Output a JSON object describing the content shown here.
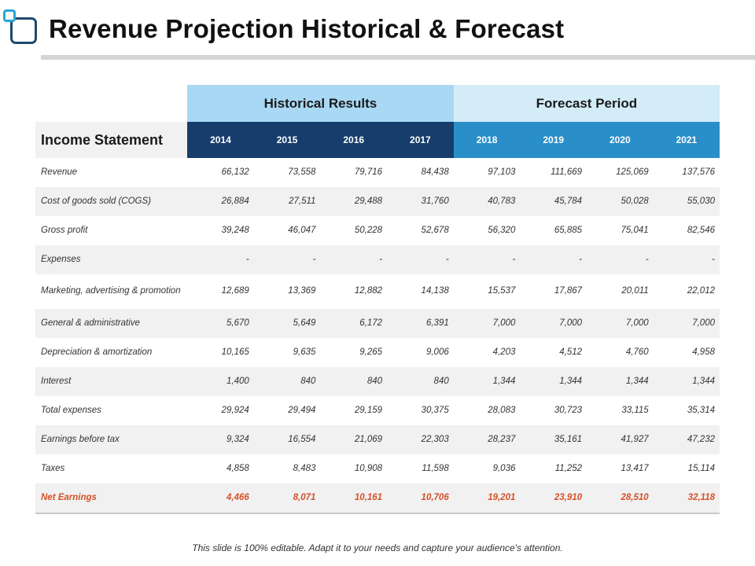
{
  "title": "Revenue Projection Historical & Forecast",
  "footer": "This slide is 100% editable. Adapt it to your needs and capture your audience's attention.",
  "table": {
    "row_header": "Income Statement",
    "groups": {
      "historical": "Historical Results",
      "forecast": "Forecast Period"
    },
    "years": [
      "2014",
      "2015",
      "2016",
      "2017",
      "2018",
      "2019",
      "2020",
      "2021"
    ],
    "rows": [
      {
        "label": "Revenue",
        "values": [
          "66,132",
          "73,558",
          "79,716",
          "84,438",
          "97,103",
          "111,669",
          "125,069",
          "137,576"
        ]
      },
      {
        "label": "Cost of goods sold (COGS)",
        "values": [
          "26,884",
          "27,511",
          "29,488",
          "31,760",
          "40,783",
          "45,784",
          "50,028",
          "55,030"
        ]
      },
      {
        "label": "Gross profit",
        "values": [
          "39,248",
          "46,047",
          "50,228",
          "52,678",
          "56,320",
          "65,885",
          "75,041",
          "82,546"
        ]
      },
      {
        "label": "Expenses",
        "values": [
          "-",
          "-",
          "-",
          "-",
          "-",
          "-",
          "-",
          "-"
        ]
      },
      {
        "label": "Marketing, advertising & promotion",
        "values": [
          "12,689",
          "13,369",
          "12,882",
          "14,138",
          "15,537",
          "17,867",
          "20,011",
          "22,012"
        ]
      },
      {
        "label": "General & administrative",
        "values": [
          "5,670",
          "5,649",
          "6,172",
          "6,391",
          "7,000",
          "7,000",
          "7,000",
          "7,000"
        ]
      },
      {
        "label": "Depreciation & amortization",
        "values": [
          "10,165",
          "9,635",
          "9,265",
          "9,006",
          "4,203",
          "4,512",
          "4,760",
          "4,958"
        ]
      },
      {
        "label": "Interest",
        "values": [
          "1,400",
          "840",
          "840",
          "840",
          "1,344",
          "1,344",
          "1,344",
          "1,344"
        ]
      },
      {
        "label": "Total expenses",
        "values": [
          "29,924",
          "29,494",
          "29,159",
          "30,375",
          "28,083",
          "30,723",
          "33,115",
          "35,314"
        ]
      },
      {
        "label": "Earnings before tax",
        "values": [
          "9,324",
          "16,554",
          "21,069",
          "22,303",
          "28,237",
          "35,161",
          "41,927",
          "47,232"
        ]
      },
      {
        "label": "Taxes",
        "values": [
          "4,858",
          "8,483",
          "10,908",
          "11,598",
          "9,036",
          "11,252",
          "13,417",
          "15,114"
        ]
      },
      {
        "label": "Net Earnings",
        "values": [
          "4,466",
          "8,071",
          "10,161",
          "10,706",
          "19,201",
          "23,910",
          "28,510",
          "32,118"
        ]
      }
    ]
  }
}
